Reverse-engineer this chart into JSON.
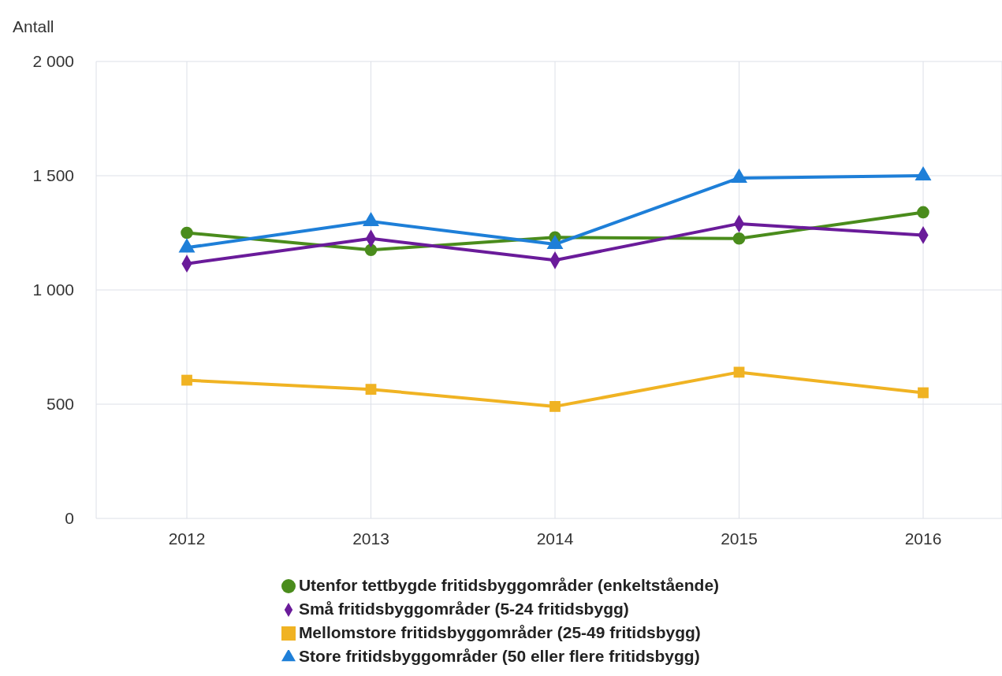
{
  "chart_data": {
    "type": "line",
    "ylabel": "Antall",
    "categories": [
      "2012",
      "2013",
      "2014",
      "2015",
      "2016"
    ],
    "series": [
      {
        "name": "Utenfor tettbygde fritidsbyggområder (enkeltstående)",
        "color": "#4a8c1c",
        "marker": "circle",
        "values": [
          1250,
          1175,
          1230,
          1225,
          1340
        ]
      },
      {
        "name": "Små fritidsbyggområder (5-24 fritidsbygg)",
        "color": "#6a1b9a",
        "marker": "diamond",
        "values": [
          1115,
          1225,
          1130,
          1290,
          1240
        ]
      },
      {
        "name": "Mellomstore fritidsbyggområder (25-49 fritidsbygg)",
        "color": "#f0b323",
        "marker": "square",
        "values": [
          605,
          565,
          490,
          640,
          550
        ]
      },
      {
        "name": "Store fritidsbyggområder (50 eller flere fritidsbygg)",
        "color": "#1e7fd8",
        "marker": "triangle",
        "values": [
          1185,
          1300,
          1200,
          1490,
          1500
        ]
      }
    ],
    "ylim": [
      0,
      2000
    ],
    "yticks": [
      0,
      500,
      {
        "value": 1000,
        "label": "1 000"
      },
      {
        "value": 1500,
        "label": "1 500"
      },
      {
        "value": 2000,
        "label": "2 000"
      }
    ],
    "grid": true,
    "legend": "bottom"
  }
}
